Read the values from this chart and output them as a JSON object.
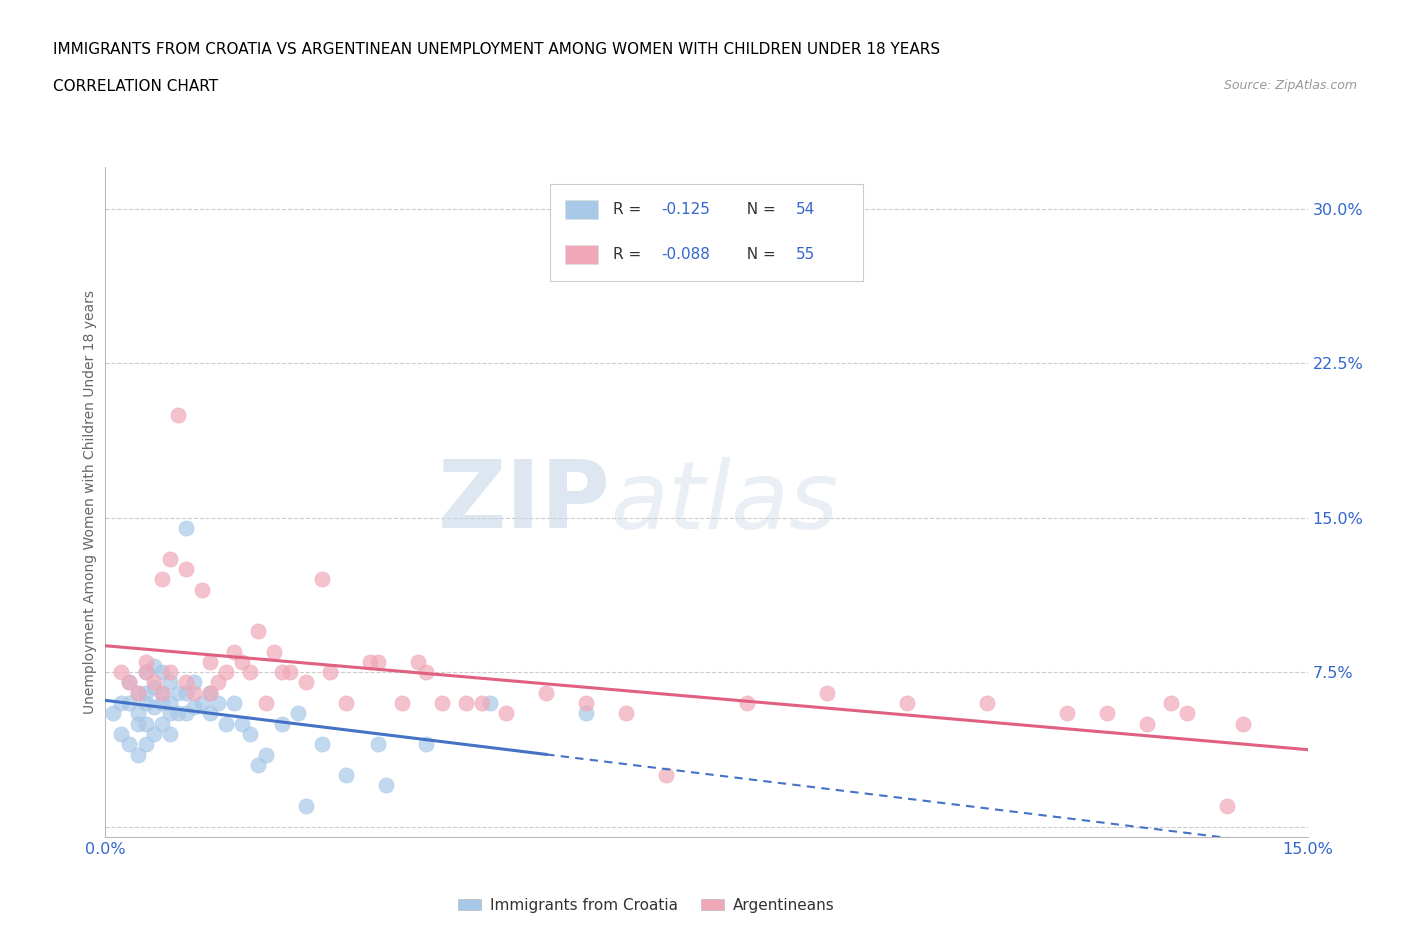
{
  "title_line1": "IMMIGRANTS FROM CROATIA VS ARGENTINEAN UNEMPLOYMENT AMONG WOMEN WITH CHILDREN UNDER 18 YEARS",
  "title_line2": "CORRELATION CHART",
  "source_text": "Source: ZipAtlas.com",
  "ylabel": "Unemployment Among Women with Children Under 18 years",
  "xlim": [
    0.0,
    0.15
  ],
  "ylim": [
    -0.005,
    0.32
  ],
  "color_croatia": "#a8c8e8",
  "color_argentinean": "#f0a8b8",
  "color_trendline_croatia": "#4472c4",
  "color_trendline_argentina": "#e06080",
  "watermark_zip": "ZIP",
  "watermark_atlas": "atlas",
  "croatia_scatter_x": [
    0.001,
    0.002,
    0.002,
    0.003,
    0.003,
    0.003,
    0.004,
    0.004,
    0.004,
    0.004,
    0.005,
    0.005,
    0.005,
    0.005,
    0.005,
    0.006,
    0.006,
    0.006,
    0.006,
    0.007,
    0.007,
    0.007,
    0.007,
    0.008,
    0.008,
    0.008,
    0.008,
    0.009,
    0.009,
    0.01,
    0.01,
    0.01,
    0.011,
    0.011,
    0.012,
    0.013,
    0.013,
    0.014,
    0.015,
    0.016,
    0.017,
    0.018,
    0.019,
    0.02,
    0.022,
    0.024,
    0.025,
    0.027,
    0.03,
    0.034,
    0.035,
    0.04,
    0.048,
    0.06
  ],
  "croatia_scatter_y": [
    0.055,
    0.06,
    0.045,
    0.07,
    0.06,
    0.04,
    0.065,
    0.055,
    0.05,
    0.035,
    0.075,
    0.065,
    0.06,
    0.05,
    0.04,
    0.078,
    0.068,
    0.058,
    0.045,
    0.075,
    0.065,
    0.06,
    0.05,
    0.07,
    0.06,
    0.055,
    0.045,
    0.065,
    0.055,
    0.145,
    0.065,
    0.055,
    0.07,
    0.058,
    0.06,
    0.065,
    0.055,
    0.06,
    0.05,
    0.06,
    0.05,
    0.045,
    0.03,
    0.035,
    0.05,
    0.055,
    0.01,
    0.04,
    0.025,
    0.04,
    0.02,
    0.04,
    0.06,
    0.055
  ],
  "argentina_scatter_x": [
    0.002,
    0.003,
    0.004,
    0.005,
    0.005,
    0.006,
    0.007,
    0.007,
    0.008,
    0.008,
    0.009,
    0.01,
    0.01,
    0.011,
    0.012,
    0.013,
    0.013,
    0.014,
    0.015,
    0.016,
    0.017,
    0.018,
    0.019,
    0.02,
    0.021,
    0.022,
    0.023,
    0.025,
    0.027,
    0.028,
    0.03,
    0.033,
    0.034,
    0.037,
    0.039,
    0.04,
    0.042,
    0.045,
    0.047,
    0.05,
    0.055,
    0.06,
    0.065,
    0.07,
    0.08,
    0.09,
    0.1,
    0.11,
    0.12,
    0.125,
    0.13,
    0.133,
    0.135,
    0.14,
    0.142
  ],
  "argentina_scatter_y": [
    0.075,
    0.07,
    0.065,
    0.075,
    0.08,
    0.07,
    0.12,
    0.065,
    0.075,
    0.13,
    0.2,
    0.125,
    0.07,
    0.065,
    0.115,
    0.08,
    0.065,
    0.07,
    0.075,
    0.085,
    0.08,
    0.075,
    0.095,
    0.06,
    0.085,
    0.075,
    0.075,
    0.07,
    0.12,
    0.075,
    0.06,
    0.08,
    0.08,
    0.06,
    0.08,
    0.075,
    0.06,
    0.06,
    0.06,
    0.055,
    0.065,
    0.06,
    0.055,
    0.025,
    0.06,
    0.065,
    0.06,
    0.06,
    0.055,
    0.055,
    0.05,
    0.06,
    0.055,
    0.01,
    0.05
  ]
}
